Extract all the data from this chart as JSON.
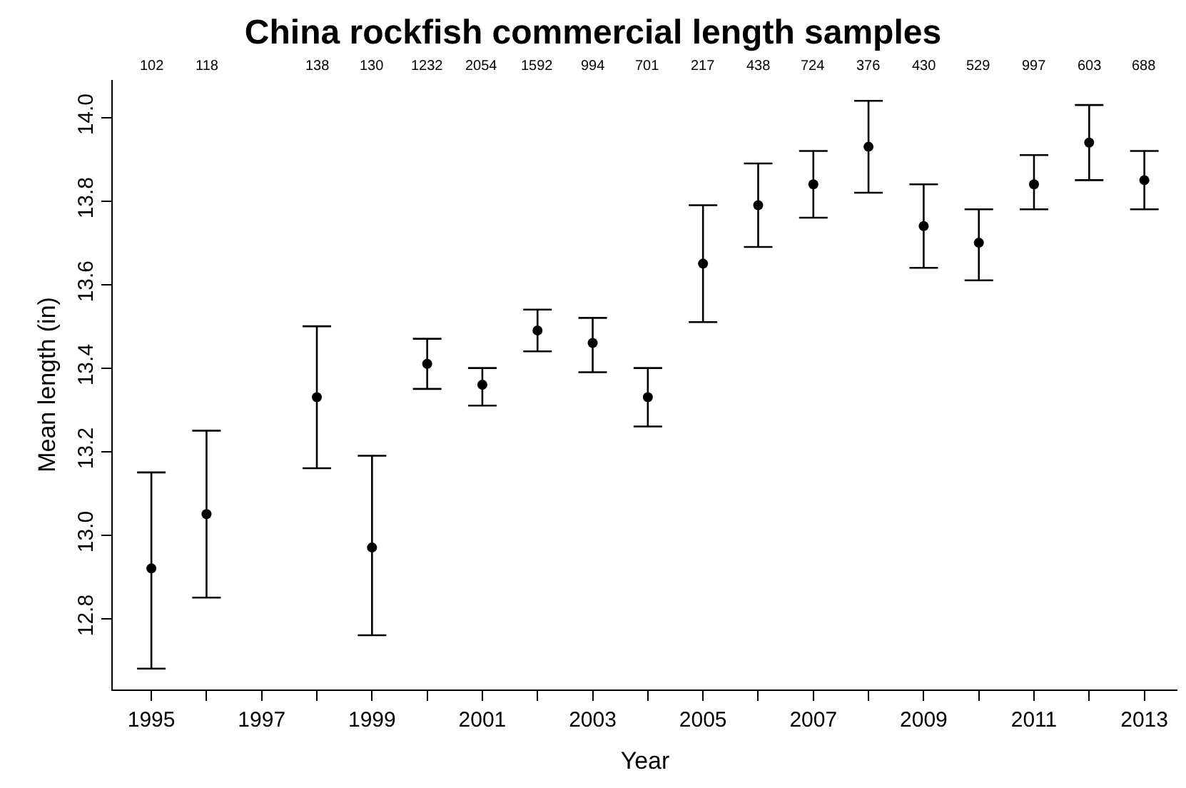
{
  "chart_data": {
    "type": "scatter",
    "title": "China rockfish commercial length samples",
    "xlabel": "Year",
    "ylabel": "Mean length (in)",
    "x": [
      1995,
      1996,
      1998,
      1999,
      2000,
      2001,
      2002,
      2003,
      2004,
      2005,
      2006,
      2007,
      2008,
      2009,
      2010,
      2011,
      2012,
      2013
    ],
    "values": [
      12.92,
      13.05,
      13.33,
      12.97,
      13.41,
      13.36,
      13.49,
      13.46,
      13.33,
      13.65,
      13.79,
      13.84,
      13.93,
      13.74,
      13.7,
      13.84,
      13.94,
      13.85
    ],
    "errors": [
      [
        12.68,
        13.15
      ],
      [
        12.85,
        13.25
      ],
      [
        13.16,
        13.5
      ],
      [
        12.76,
        13.19
      ],
      [
        13.35,
        13.47
      ],
      [
        13.31,
        13.4
      ],
      [
        13.44,
        13.54
      ],
      [
        13.39,
        13.52
      ],
      [
        13.26,
        13.4
      ],
      [
        13.51,
        13.79
      ],
      [
        13.69,
        13.89
      ],
      [
        13.76,
        13.92
      ],
      [
        13.82,
        14.04
      ],
      [
        13.64,
        13.84
      ],
      [
        13.61,
        13.78
      ],
      [
        13.78,
        13.91
      ],
      [
        13.85,
        14.03
      ],
      [
        13.78,
        13.92
      ]
    ],
    "annotations": [
      "102",
      "118",
      "138",
      "130",
      "1232",
      "2054",
      "1592",
      "994",
      "701",
      "217",
      "438",
      "724",
      "376",
      "430",
      "529",
      "997",
      "603",
      "688"
    ],
    "color": "#000000",
    "marker": "circle",
    "xlim": [
      1994.3,
      2013.6
    ],
    "ylim": [
      12.63,
      14.09
    ],
    "xticks": [
      1995,
      {
        "value": 1996,
        "label": null
      },
      1997,
      {
        "value": 1998,
        "label": null
      },
      1999,
      {
        "value": 2000,
        "label": null
      },
      2001,
      {
        "value": 2002,
        "label": null
      },
      2003,
      {
        "value": 2004,
        "label": null
      },
      2005,
      {
        "value": 2006,
        "label": null
      },
      2007,
      {
        "value": 2008,
        "label": null
      },
      2009,
      {
        "value": 2010,
        "label": null
      },
      2011,
      {
        "value": 2012,
        "label": null
      },
      2013
    ],
    "yticks": [
      12.8,
      {
        "value": 13,
        "label": "13.0"
      },
      13.2,
      13.4,
      13.6,
      13.8,
      {
        "value": 14,
        "label": "14.0"
      }
    ]
  }
}
